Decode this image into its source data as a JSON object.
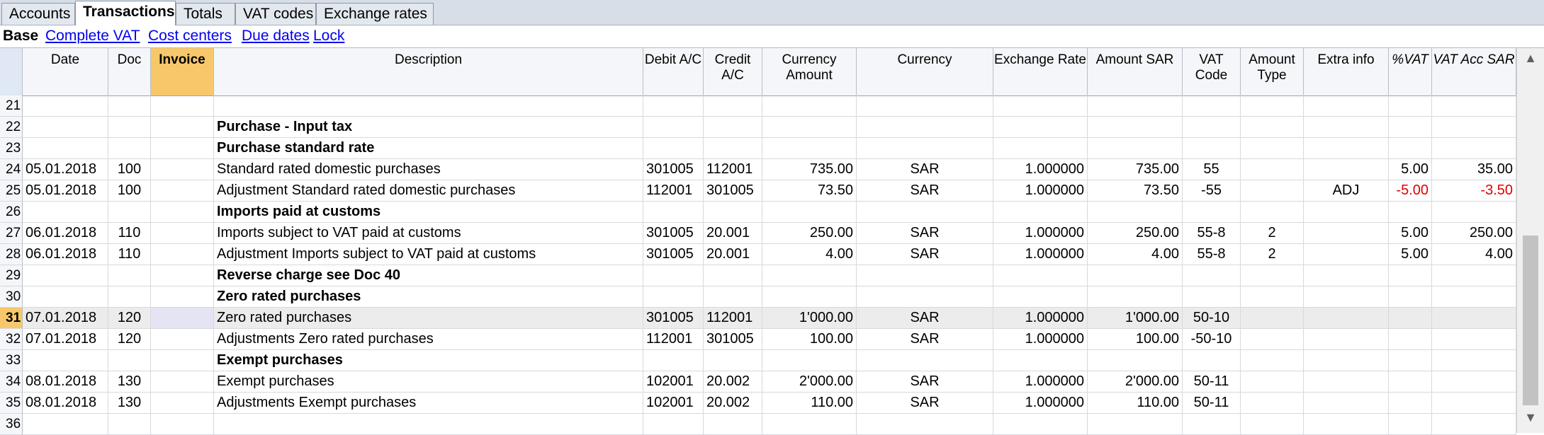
{
  "tabs": [
    "Accounts",
    "Transactions",
    "Totals",
    "VAT codes",
    "Exchange rates"
  ],
  "active_tab": "Transactions",
  "views": {
    "current": "Base",
    "links": [
      "Complete VAT",
      "Cost centers",
      "Due dates",
      "Lock"
    ]
  },
  "columns": [
    {
      "key": "date",
      "label": "Date"
    },
    {
      "key": "doc",
      "label": "Doc"
    },
    {
      "key": "invoice",
      "label": "Invoice"
    },
    {
      "key": "desc",
      "label": "Description"
    },
    {
      "key": "debit",
      "label": "Debit A/C"
    },
    {
      "key": "credit",
      "label": "Credit A/C"
    },
    {
      "key": "curamt",
      "label": "Currency Amount"
    },
    {
      "key": "currency",
      "label": "Currency"
    },
    {
      "key": "exrate",
      "label": "Exchange Rate"
    },
    {
      "key": "amount",
      "label": "Amount SAR"
    },
    {
      "key": "vatcode",
      "label": "VAT Code"
    },
    {
      "key": "amttype",
      "label": "Amount Type"
    },
    {
      "key": "extra",
      "label": "Extra info"
    },
    {
      "key": "pvat",
      "label": "%VAT"
    },
    {
      "key": "vatacc",
      "label": "VAT Acc SAR"
    }
  ],
  "rows": [
    {
      "n": "21"
    },
    {
      "n": "22",
      "desc": "Purchase - Input tax",
      "bold": true
    },
    {
      "n": "23",
      "desc": "Purchase  standard rate",
      "bold": true
    },
    {
      "n": "24",
      "date": "05.01.2018",
      "doc": "100",
      "desc": "Standard rated domestic purchases",
      "debit": "301005",
      "credit": "112001",
      "curamt": "735.00",
      "currency": "SAR",
      "exrate": "1.000000",
      "amount": "735.00",
      "vatcode": "55",
      "pvat": "5.00",
      "vatacc": "35.00"
    },
    {
      "n": "25",
      "date": "05.01.2018",
      "doc": "100",
      "desc": "Adjustment Standard rated domestic purchases",
      "debit": "112001",
      "credit": "301005",
      "curamt": "73.50",
      "currency": "SAR",
      "exrate": "1.000000",
      "amount": "73.50",
      "vatcode": "-55",
      "extra": "ADJ",
      "pvat": "-5.00",
      "vatacc": "-3.50",
      "negative": true
    },
    {
      "n": "26",
      "desc": "Imports paid at customs",
      "bold": true
    },
    {
      "n": "27",
      "date": "06.01.2018",
      "doc": "110",
      "desc": "Imports subject to VAT paid at customs",
      "debit": "301005",
      "credit": "20.001",
      "curamt": "250.00",
      "currency": "SAR",
      "exrate": "1.000000",
      "amount": "250.00",
      "vatcode": "55-8",
      "amttype": "2",
      "pvat": "5.00",
      "vatacc": "250.00"
    },
    {
      "n": "28",
      "date": "06.01.2018",
      "doc": "110",
      "desc": "Adjustment Imports subject to VAT paid at customs",
      "debit": "301005",
      "credit": "20.001",
      "curamt": "4.00",
      "currency": "SAR",
      "exrate": "1.000000",
      "amount": "4.00",
      "vatcode": "55-8",
      "amttype": "2",
      "pvat": "5.00",
      "vatacc": "4.00"
    },
    {
      "n": "29",
      "desc": "Reverse charge see Doc 40",
      "bold": true
    },
    {
      "n": "30",
      "desc": "Zero rated purchases",
      "bold": true
    },
    {
      "n": "31",
      "date": "07.01.2018",
      "doc": "120",
      "desc": "Zero rated purchases",
      "debit": "301005",
      "credit": "112001",
      "curamt": "1'000.00",
      "currency": "SAR",
      "exrate": "1.000000",
      "amount": "1'000.00",
      "vatcode": "50-10",
      "selected": true
    },
    {
      "n": "32",
      "date": "07.01.2018",
      "doc": "120",
      "desc": "Adjustments Zero rated purchases",
      "debit": "112001",
      "credit": "301005",
      "curamt": "100.00",
      "currency": "SAR",
      "exrate": "1.000000",
      "amount": "100.00",
      "vatcode": "-50-10"
    },
    {
      "n": "33",
      "desc": "Exempt purchases",
      "bold": true
    },
    {
      "n": "34",
      "date": "08.01.2018",
      "doc": "130",
      "desc": "Exempt purchases",
      "debit": "102001",
      "credit": "20.002",
      "curamt": "2'000.00",
      "currency": "SAR",
      "exrate": "1.000000",
      "amount": "2'000.00",
      "vatcode": "50-11"
    },
    {
      "n": "35",
      "date": "08.01.2018",
      "doc": "130",
      "desc": "Adjustments Exempt purchases",
      "debit": "102001",
      "credit": "20.002",
      "curamt": "110.00",
      "currency": "SAR",
      "exrate": "1.000000",
      "amount": "110.00",
      "vatcode": "50-11"
    },
    {
      "n": "36"
    }
  ],
  "scrollbar": {
    "up_icon": "chevron-up-icon",
    "down_icon": "chevron-down-icon"
  }
}
